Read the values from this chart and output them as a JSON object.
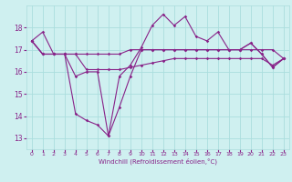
{
  "xlabel": "Windchill (Refroidissement éolien,°C)",
  "bg_color": "#cff0f0",
  "line_color": "#882288",
  "grid_color": "#aadddd",
  "ylim": [
    12.5,
    19.0
  ],
  "xlim": [
    -0.5,
    23.5
  ],
  "yticks": [
    13,
    14,
    15,
    16,
    17,
    18
  ],
  "xticks": [
    0,
    1,
    2,
    3,
    4,
    5,
    6,
    7,
    8,
    9,
    10,
    11,
    12,
    13,
    14,
    15,
    16,
    17,
    18,
    19,
    20,
    21,
    22,
    23
  ],
  "line1": [
    17.4,
    17.8,
    16.8,
    16.8,
    15.8,
    16.0,
    16.0,
    13.1,
    15.8,
    16.3,
    17.1,
    18.1,
    18.6,
    18.1,
    18.5,
    17.6,
    17.4,
    17.8,
    17.0,
    17.0,
    17.3,
    16.8,
    16.2,
    16.6
  ],
  "line2": [
    17.4,
    16.8,
    16.8,
    16.8,
    14.1,
    13.8,
    13.6,
    13.1,
    14.4,
    15.8,
    17.0,
    17.0,
    17.0,
    17.0,
    17.0,
    17.0,
    17.0,
    17.0,
    17.0,
    17.0,
    17.0,
    17.0,
    17.0,
    16.6
  ],
  "line3": [
    17.4,
    16.8,
    16.8,
    16.8,
    16.8,
    16.1,
    16.1,
    16.1,
    16.1,
    16.2,
    16.3,
    16.4,
    16.5,
    16.6,
    16.6,
    16.6,
    16.6,
    16.6,
    16.6,
    16.6,
    16.6,
    16.6,
    16.3,
    16.6
  ],
  "line4": [
    17.4,
    16.8,
    16.8,
    16.8,
    16.8,
    16.8,
    16.8,
    16.8,
    16.8,
    17.0,
    17.0,
    17.0,
    17.0,
    17.0,
    17.0,
    17.0,
    17.0,
    17.0,
    17.0,
    17.0,
    17.3,
    16.8,
    16.2,
    16.6
  ]
}
